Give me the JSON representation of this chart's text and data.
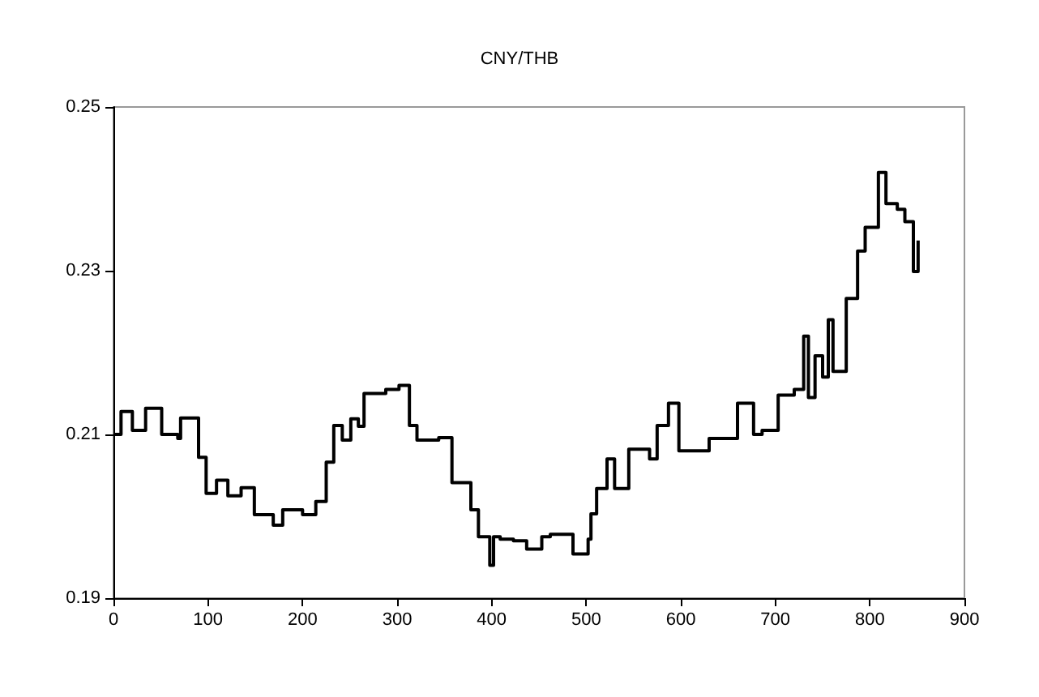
{
  "chart_data": {
    "type": "step",
    "title": "CNY/THB",
    "color": "#000000",
    "x": [
      0,
      8,
      20,
      34,
      51,
      68,
      71,
      90,
      98,
      109,
      121,
      135,
      149,
      169,
      179,
      200,
      214,
      225,
      233,
      242,
      251,
      259,
      265,
      288,
      302,
      313,
      321,
      344,
      358,
      378,
      386,
      398,
      402,
      409,
      423,
      437,
      453,
      462,
      486,
      502,
      505,
      511,
      522,
      530,
      545,
      567,
      575,
      587,
      598,
      612,
      630,
      660,
      677,
      686,
      703,
      720,
      730,
      735,
      742,
      750,
      756,
      761,
      775,
      787,
      795,
      809,
      817,
      829,
      837,
      846,
      851
    ],
    "values": [
      0.21,
      0.2128,
      0.2105,
      0.2132,
      0.21,
      0.2095,
      0.212,
      0.2072,
      0.2028,
      0.2044,
      0.2025,
      0.2035,
      0.2002,
      0.1989,
      0.2008,
      0.2002,
      0.2018,
      0.2066,
      0.2111,
      0.2093,
      0.2119,
      0.211,
      0.215,
      0.2155,
      0.216,
      0.2111,
      0.2093,
      0.2096,
      0.2041,
      0.2008,
      0.1975,
      0.194,
      0.1975,
      0.1972,
      0.197,
      0.196,
      0.1975,
      0.1978,
      0.1954,
      0.1972,
      0.2003,
      0.2034,
      0.207,
      0.2034,
      0.2082,
      0.207,
      0.2111,
      0.2138,
      0.208,
      0.208,
      0.2095,
      0.2138,
      0.21,
      0.2105,
      0.2148,
      0.2155,
      0.222,
      0.2145,
      0.2196,
      0.217,
      0.224,
      0.2177,
      0.2266,
      0.2324,
      0.2353,
      0.242,
      0.2382,
      0.2375,
      0.236,
      0.2299,
      0.2337
    ],
    "xlim": [
      0,
      900
    ],
    "xticks": [
      0,
      100,
      200,
      300,
      400,
      500,
      600,
      700,
      800,
      900
    ],
    "ylim": [
      0.19,
      0.25
    ],
    "yticks": [
      0.19,
      0.21,
      0.23,
      0.25
    ],
    "grid": false
  }
}
